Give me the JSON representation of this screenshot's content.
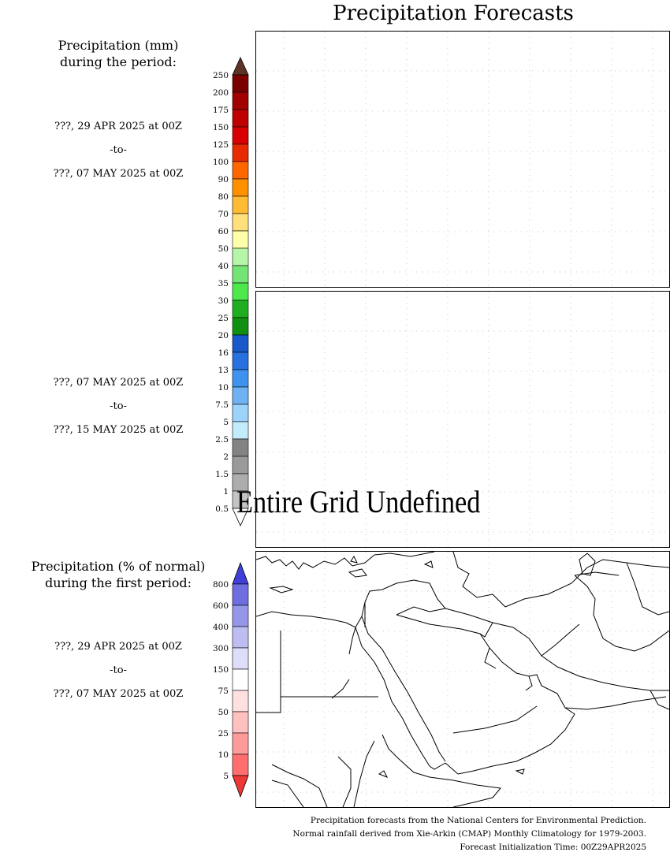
{
  "title": "Precipitation Forecasts",
  "panel1": {
    "heading": [
      "Precipitation (mm)",
      "during the period:"
    ],
    "from": "???, 29 APR 2025 at 00Z",
    "to_word": "-to-",
    "to": "???, 07 MAY 2025 at 00Z"
  },
  "panel2": {
    "from": "???, 07 MAY 2025 at 00Z",
    "to_word": "-to-",
    "to": "???, 15 MAY 2025 at 00Z",
    "message": "Entire Grid Undefined"
  },
  "panel3": {
    "heading": [
      "Precipitation (% of normal)",
      "during the first period:"
    ],
    "from": "???, 29 APR 2025 at 00Z",
    "to_word": "-to-",
    "to": "???, 07 MAY 2025 at 00Z"
  },
  "precip_scale": {
    "labels": [
      "250",
      "200",
      "175",
      "150",
      "125",
      "100",
      "90",
      "80",
      "70",
      "60",
      "50",
      "40",
      "35",
      "30",
      "25",
      "20",
      "16",
      "13",
      "10",
      "7.5",
      "5",
      "2.5",
      "2",
      "1.5",
      "1",
      "0.5"
    ],
    "top_arrow_color": "#5c3326",
    "bottom_arrow_color": "#ffffff",
    "colors": [
      "#7a0000",
      "#a00000",
      "#be0000",
      "#d80000",
      "#e82a00",
      "#ff6600",
      "#ff9000",
      "#ffbb33",
      "#ffe07a",
      "#ffffaa",
      "#b7f5a8",
      "#74e474",
      "#4ce84c",
      "#1fae1f",
      "#109010",
      "#1858c8",
      "#2670e0",
      "#3f93ee",
      "#6eb2f4",
      "#9cd3fa",
      "#c2ecfc",
      "#838383",
      "#9a9a9a",
      "#adadad",
      "#c4c4c4"
    ]
  },
  "pct_scale": {
    "labels": [
      "800",
      "600",
      "400",
      "300",
      "150",
      "75",
      "50",
      "25",
      "10",
      "5"
    ],
    "top_arrow_color": "#4040d8",
    "bottom_arrow_color": "#ee3838",
    "colors": [
      "#6e6ee0",
      "#9595ea",
      "#bdbdf2",
      "#dedefa",
      "#ffffff",
      "#ffe0e0",
      "#ffc0c0",
      "#ff9a9a",
      "#ff6e6e"
    ]
  },
  "footer": [
    "Precipitation forecasts from the National Centers for Environmental Prediction.",
    "Normal rainfall derived from Xie-Arkin (CMAP) Monthly Climatology for 1979-2003.",
    "Forecast Initialization Time: 00Z29APR2025"
  ]
}
